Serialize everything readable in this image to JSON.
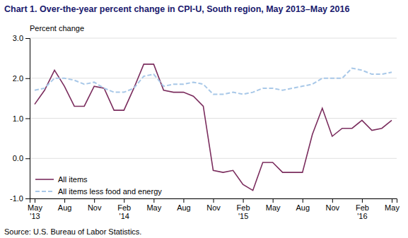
{
  "chart_data": {
    "type": "line",
    "title": "Chart 1. Over-the-year percent change in CPI-U, South region, May 2013–May 2016",
    "y_label": "Percent change",
    "source": "Source: U.S. Bureau of Labor Statistics.",
    "categories": [
      "May\n'13",
      null,
      null,
      "Aug",
      null,
      null,
      "Nov",
      null,
      null,
      "Feb\n'14",
      null,
      null,
      "May",
      null,
      null,
      "Aug",
      null,
      null,
      "Nov",
      null,
      null,
      "Feb\n'15",
      null,
      null,
      "May",
      null,
      null,
      "Aug",
      null,
      null,
      "Nov",
      null,
      null,
      "Feb\n'16",
      null,
      null,
      "May"
    ],
    "series": [
      {
        "name": "All items",
        "color": "#7B2D5E",
        "line_style": "solid",
        "values": [
          1.35,
          1.7,
          2.2,
          1.8,
          1.3,
          1.3,
          1.8,
          1.75,
          1.2,
          1.2,
          1.75,
          2.35,
          2.35,
          1.7,
          1.65,
          1.65,
          1.55,
          1.3,
          -0.3,
          -0.35,
          -0.3,
          -0.65,
          -0.8,
          -0.1,
          -0.1,
          -0.35,
          -0.35,
          -0.35,
          0.6,
          1.25,
          0.55,
          0.75,
          0.75,
          0.95,
          0.7,
          0.75,
          0.95
        ]
      },
      {
        "name": "All items less food and energy",
        "color": "#A8C8E8",
        "line_style": "dashed",
        "values": [
          1.7,
          1.75,
          2.0,
          2.0,
          1.95,
          1.85,
          1.9,
          1.75,
          1.65,
          1.65,
          1.75,
          2.05,
          2.1,
          1.8,
          1.85,
          1.85,
          1.9,
          1.85,
          1.6,
          1.6,
          1.65,
          1.6,
          1.65,
          1.75,
          1.75,
          1.7,
          1.75,
          1.8,
          1.85,
          2.0,
          2.0,
          2.0,
          2.25,
          2.2,
          2.1,
          2.1,
          2.15
        ]
      }
    ],
    "ylim": [
      -1.0,
      3.0
    ],
    "yticks": [
      {
        "value": -1.0,
        "label": "-1.0"
      },
      {
        "value": 0.0,
        "label": "0.0"
      },
      {
        "value": 1.0,
        "label": "1.0"
      },
      {
        "value": 2.0,
        "label": "2.0"
      },
      {
        "value": 3.0,
        "label": "3.0"
      }
    ],
    "grid": true,
    "legend": "lower left"
  }
}
